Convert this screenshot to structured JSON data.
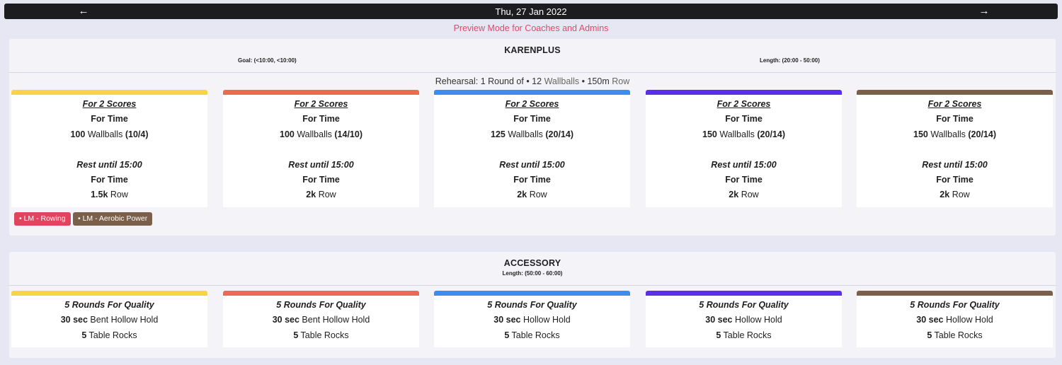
{
  "header": {
    "date": "Thu, 27 Jan 2022",
    "prev_icon": "←",
    "next_icon": "→",
    "preview_notice": "Preview Mode for Coaches and Admins"
  },
  "colors": {
    "levels": [
      "#f5d547",
      "#ec6a4f",
      "#3f8cef",
      "#5b2ee8",
      "#7a5f4a"
    ],
    "preview": "#e5486b"
  },
  "karenplus": {
    "title": "KARENPLUS",
    "goal": "Goal: (<10:00, <10:00)",
    "length": "Length: (20:00 - 50:00)",
    "rehearsal": {
      "prefix": "Rehearsal: 1 Round of • 12",
      "wb": "Wallballs",
      "mid": "• 150m",
      "row": "Row"
    },
    "columns": [
      {
        "scores": "For 2 Scores",
        "for_time_1": "For Time",
        "wb_qty": "100",
        "wb_label": "Wallballs",
        "wb_weight": "(10/4)",
        "rest": "Rest until 15:00",
        "for_time_2": "For Time",
        "row_qty": "1.5k",
        "row_label": "Row"
      },
      {
        "scores": "For 2 Scores",
        "for_time_1": "For Time",
        "wb_qty": "100",
        "wb_label": "Wallballs",
        "wb_weight": "(14/10)",
        "rest": "Rest until 15:00",
        "for_time_2": "For Time",
        "row_qty": "2k",
        "row_label": "Row"
      },
      {
        "scores": "For 2 Scores",
        "for_time_1": "For Time",
        "wb_qty": "125",
        "wb_label": "Wallballs",
        "wb_weight": "(20/14)",
        "rest": "Rest until 15:00",
        "for_time_2": "For Time",
        "row_qty": "2k",
        "row_label": "Row"
      },
      {
        "scores": "For 2 Scores",
        "for_time_1": "For Time",
        "wb_qty": "150",
        "wb_label": "Wallballs",
        "wb_weight": "(20/14)",
        "rest": "Rest until 15:00",
        "for_time_2": "For Time",
        "row_qty": "2k",
        "row_label": "Row"
      },
      {
        "scores": "For 2 Scores",
        "for_time_1": "For Time",
        "wb_qty": "150",
        "wb_label": "Wallballs",
        "wb_weight": "(20/14)",
        "rest": "Rest until 15:00",
        "for_time_2": "For Time",
        "row_qty": "2k",
        "row_label": "Row"
      }
    ],
    "tags": [
      "• LM - Rowing",
      "• LM - Aerobic Power"
    ]
  },
  "accessory": {
    "title": "ACCESSORY",
    "length": "Length: (50:00 - 60:00)",
    "columns": [
      {
        "rounds": "5 Rounds For Quality",
        "hold_qty": "30 sec",
        "hold_label": "Bent Hollow Hold",
        "rocks_qty": "5",
        "rocks_label": "Table Rocks"
      },
      {
        "rounds": "5 Rounds For Quality",
        "hold_qty": "30 sec",
        "hold_label": "Bent Hollow Hold",
        "rocks_qty": "5",
        "rocks_label": "Table Rocks"
      },
      {
        "rounds": "5 Rounds For Quality",
        "hold_qty": "30 sec",
        "hold_label": "Hollow Hold",
        "rocks_qty": "5",
        "rocks_label": "Table Rocks"
      },
      {
        "rounds": "5 Rounds For Quality",
        "hold_qty": "30 sec",
        "hold_label": "Hollow Hold",
        "rocks_qty": "5",
        "rocks_label": "Table Rocks"
      },
      {
        "rounds": "5 Rounds For Quality",
        "hold_qty": "30 sec",
        "hold_label": "Hollow Hold",
        "rocks_qty": "5",
        "rocks_label": "Table Rocks"
      }
    ]
  }
}
